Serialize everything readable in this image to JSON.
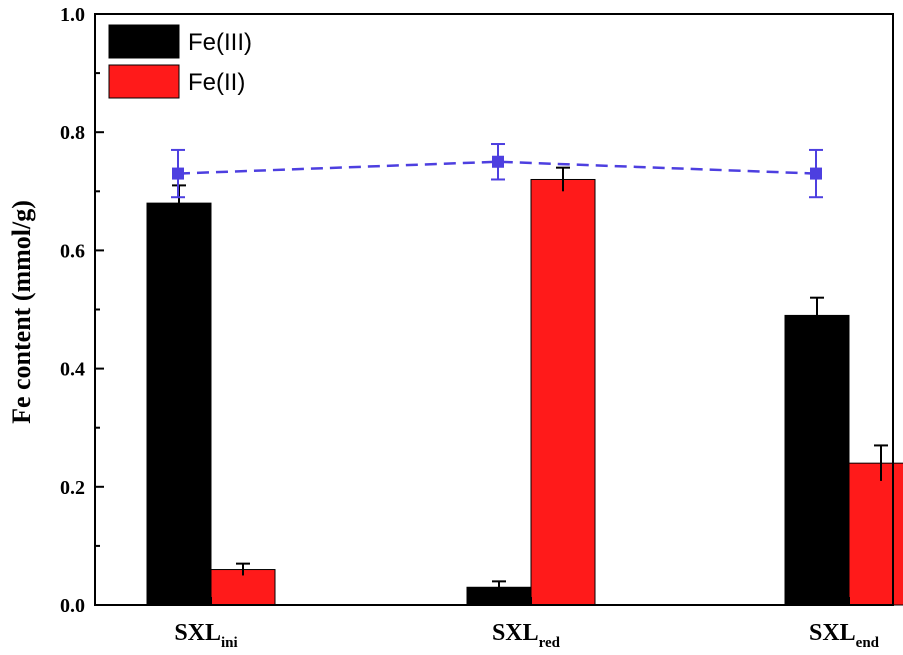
{
  "chart_data": {
    "type": "bar",
    "ylabel": "Fe content (mmol/g)",
    "ylim": [
      0,
      1.0
    ],
    "yticks": [
      "0.0",
      "0.2",
      "0.4",
      "0.6",
      "0.8",
      "1.0"
    ],
    "categories": [
      {
        "main": "SXL",
        "sub": "ini"
      },
      {
        "main": "SXL",
        "sub": "red"
      },
      {
        "main": "SXL",
        "sub": "end"
      }
    ],
    "series": [
      {
        "name": "Fe(III)",
        "color": "#000000",
        "values": [
          0.68,
          0.03,
          0.49
        ],
        "errors": [
          0.03,
          0.01,
          0.03
        ]
      },
      {
        "name": "Fe(II)",
        "color": "#ff1a1a",
        "values": [
          0.06,
          0.72,
          0.24
        ],
        "errors": [
          0.01,
          0.02,
          0.03
        ]
      }
    ],
    "total": {
      "color": "#4d3fe0",
      "style": "dashed",
      "marker": "square",
      "values": [
        0.73,
        0.75,
        0.73
      ],
      "errors": [
        0.04,
        0.03,
        0.04
      ]
    },
    "legend_position": "top-left",
    "grid": false
  }
}
